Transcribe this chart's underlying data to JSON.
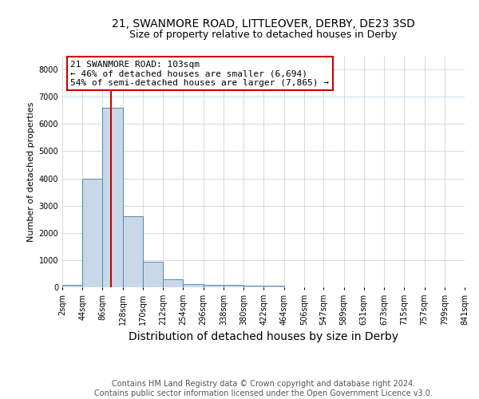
{
  "title1": "21, SWANMORE ROAD, LITTLEOVER, DERBY, DE23 3SD",
  "title2": "Size of property relative to detached houses in Derby",
  "xlabel": "Distribution of detached houses by size in Derby",
  "ylabel": "Number of detached properties",
  "bin_edges": [
    2,
    44,
    86,
    128,
    170,
    212,
    254,
    296,
    338,
    380,
    422,
    464,
    506,
    547,
    589,
    631,
    673,
    715,
    757,
    799,
    841
  ],
  "bar_heights": [
    100,
    4000,
    6600,
    2600,
    950,
    300,
    130,
    100,
    75,
    50,
    50,
    0,
    0,
    0,
    0,
    0,
    0,
    0,
    0,
    0
  ],
  "bar_color": "#c8d8e8",
  "bar_edge_color": "#5588aa",
  "property_size": 103,
  "vline_color": "#cc0000",
  "annotation_line1": "21 SWANMORE ROAD: 103sqm",
  "annotation_line2": "← 46% of detached houses are smaller (6,694)",
  "annotation_line3": "54% of semi-detached houses are larger (7,865) →",
  "annotation_box_color": "#ffffff",
  "annotation_box_edge_color": "#cc0000",
  "ylim": [
    0,
    8500
  ],
  "yticks": [
    0,
    1000,
    2000,
    3000,
    4000,
    5000,
    6000,
    7000,
    8000
  ],
  "footnote": "Contains HM Land Registry data © Crown copyright and database right 2024.\nContains public sector information licensed under the Open Government Licence v3.0.",
  "bg_color": "#ffffff",
  "grid_color": "#c8d4e4",
  "title1_fontsize": 10,
  "title2_fontsize": 9,
  "xlabel_fontsize": 10,
  "ylabel_fontsize": 8,
  "tick_fontsize": 7,
  "annotation_fontsize": 8,
  "footnote_fontsize": 7
}
